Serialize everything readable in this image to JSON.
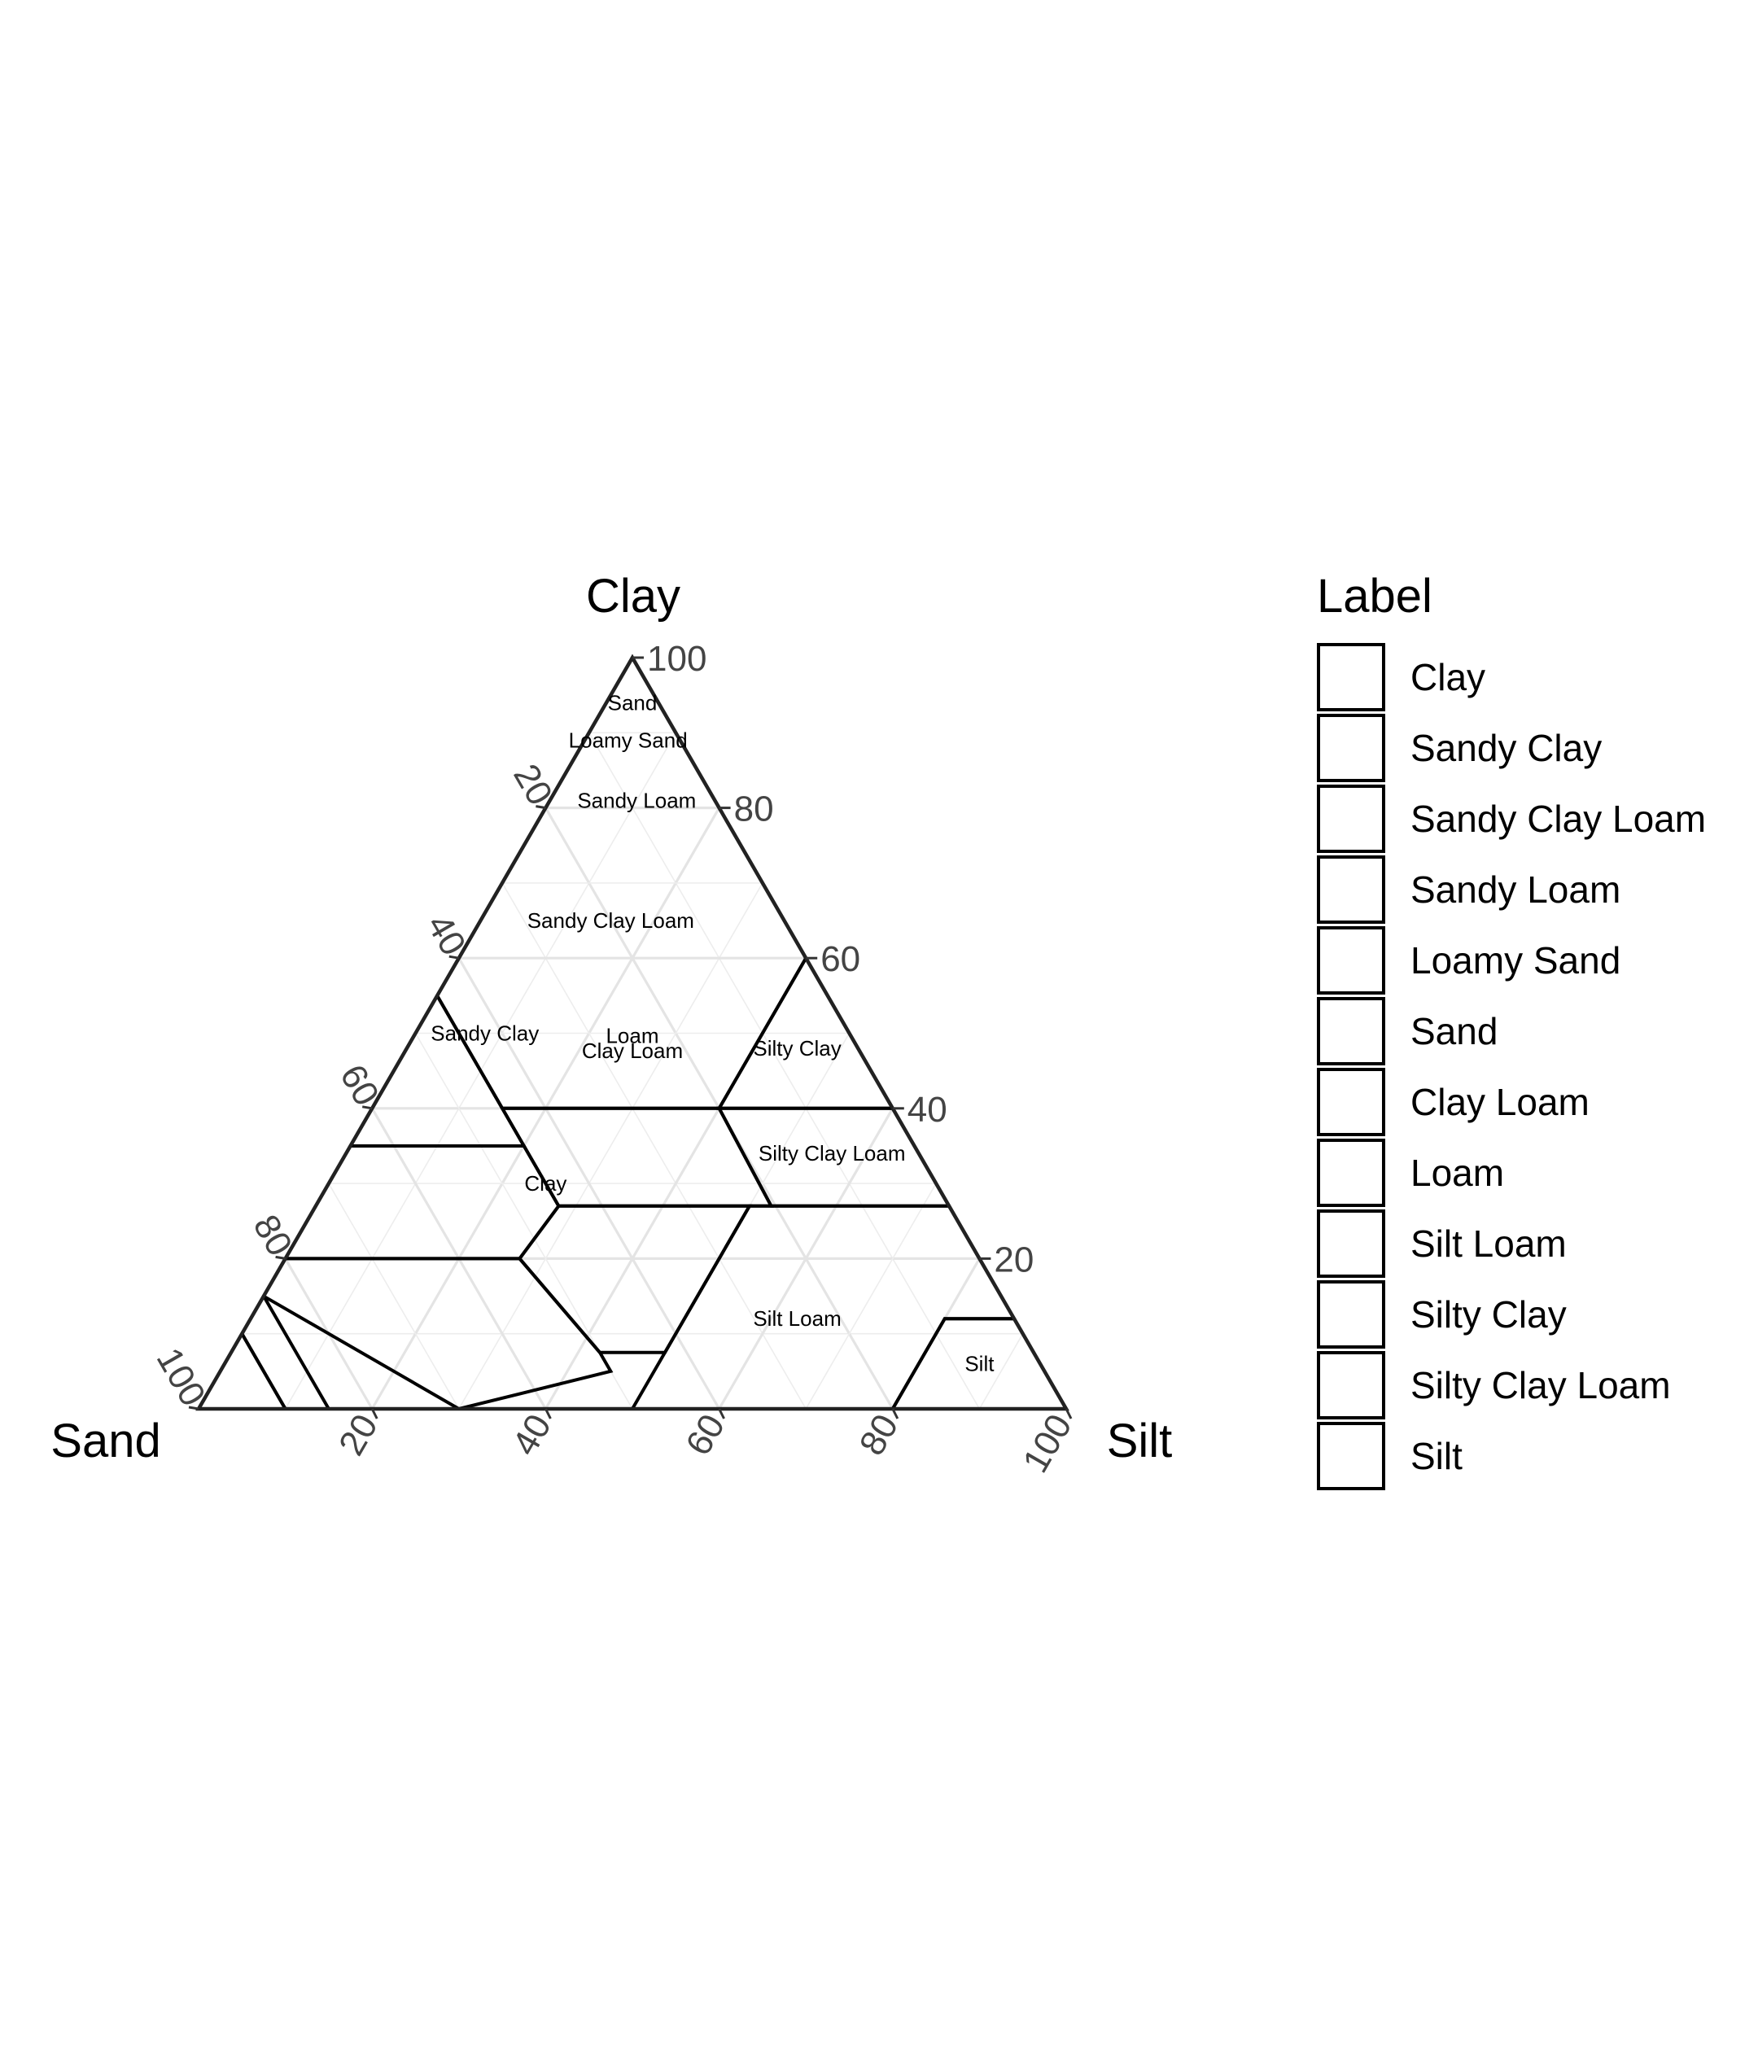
{
  "chart_data": {
    "type": "ternary",
    "axes": {
      "top": "Clay",
      "left": "Sand",
      "right": "Silt"
    },
    "ticks": [
      20,
      40,
      60,
      80,
      100
    ],
    "grid": true,
    "legend": {
      "title": "Label",
      "position": "right",
      "entries": [
        "Clay",
        "Sandy Clay",
        "Sandy Clay Loam",
        "Sandy Loam",
        "Loamy Sand",
        "Sand",
        "Clay Loam",
        "Loam",
        "Silt Loam",
        "Silty Clay",
        "Silty Clay Loam",
        "Silt"
      ]
    },
    "regions": [
      {
        "name": "Clay",
        "label": [
          30,
          25,
          45
        ],
        "points": [
          [
            100,
            0,
            0
          ],
          [
            60,
            0,
            40
          ],
          [
            55,
            0,
            45
          ],
          [
            40,
            15,
            45
          ],
          [
            40,
            40,
            20
          ],
          [
            60,
            40,
            0
          ]
        ]
      },
      {
        "name": "Sandy Clay",
        "label": [
          50,
          8,
          42
        ],
        "points": [
          [
            55,
            0,
            45
          ],
          [
            35,
            0,
            65
          ],
          [
            35,
            20,
            45
          ]
        ]
      },
      {
        "name": "Sandy Clay Loam",
        "label": [
          65,
          15,
          20
        ],
        "points": [
          [
            35,
            0,
            65
          ],
          [
            20,
            0,
            80
          ],
          [
            20,
            27,
            53
          ],
          [
            27,
            28,
            45
          ],
          [
            35,
            20,
            45
          ]
        ]
      },
      {
        "name": "Sandy Loam",
        "label": [
          81,
          10,
          9
        ],
        "points": [
          [
            20,
            0,
            80
          ],
          [
            15,
            0,
            85
          ],
          [
            0,
            15,
            85
          ],
          [
            0,
            30,
            70
          ],
          [
            5,
            45,
            50
          ],
          [
            7.5,
            42.5,
            50
          ],
          [
            20,
            27,
            53
          ]
        ]
      },
      {
        "name": "Loamy Sand",
        "label": [
          89,
          5,
          6
        ],
        "points": [
          [
            15,
            0,
            85
          ],
          [
            10,
            0,
            90
          ],
          [
            0,
            10,
            90
          ],
          [
            0,
            30,
            70
          ]
        ]
      },
      {
        "name": "Sand",
        "label": [
          94,
          3,
          3
        ],
        "points": [
          [
            10,
            0,
            90
          ],
          [
            0,
            0,
            100
          ],
          [
            0,
            10,
            90
          ]
        ]
      },
      {
        "name": "Clay Loam",
        "label": [
          62,
          34,
          34
        ],
        "points": [
          [
            40,
            15,
            45
          ],
          [
            27,
            28,
            45
          ],
          [
            27,
            52.5,
            20.5
          ],
          [
            40,
            40,
            20
          ]
        ]
      },
      {
        "name": "Loam",
        "label": [
          79,
          40,
          40
        ],
        "points": [
          [
            27,
            28,
            45
          ],
          [
            20,
            27,
            53
          ],
          [
            7.5,
            42.5,
            50
          ],
          [
            7.5,
            50,
            42.5
          ],
          [
            27,
            50,
            23
          ]
        ]
      },
      {
        "name": "Silt Loam",
        "label": [
          12,
          63,
          25
        ],
        "points": [
          [
            0,
            50,
            50
          ],
          [
            27,
            50,
            23
          ],
          [
            27,
            73,
            0
          ],
          [
            12,
            88,
            0
          ],
          [
            12,
            80,
            8
          ],
          [
            0,
            80,
            20
          ]
        ]
      },
      {
        "name": "Silty Clay",
        "label": [
          48,
          45,
          7
        ],
        "points": [
          [
            60,
            40,
            0
          ],
          [
            40,
            60,
            0
          ],
          [
            40,
            40,
            20
          ]
        ]
      },
      {
        "name": "Silty Clay Loam",
        "label": [
          34,
          56,
          10
        ],
        "points": [
          [
            40,
            60,
            0
          ],
          [
            27,
            73,
            0
          ],
          [
            27,
            52.5,
            20.5
          ],
          [
            40,
            40,
            20
          ]
        ]
      },
      {
        "name": "Silt",
        "label": [
          6,
          87,
          7
        ],
        "points": [
          [
            12,
            88,
            0
          ],
          [
            0,
            100,
            0
          ],
          [
            0,
            80,
            20
          ],
          [
            12,
            80,
            8
          ]
        ]
      }
    ]
  }
}
